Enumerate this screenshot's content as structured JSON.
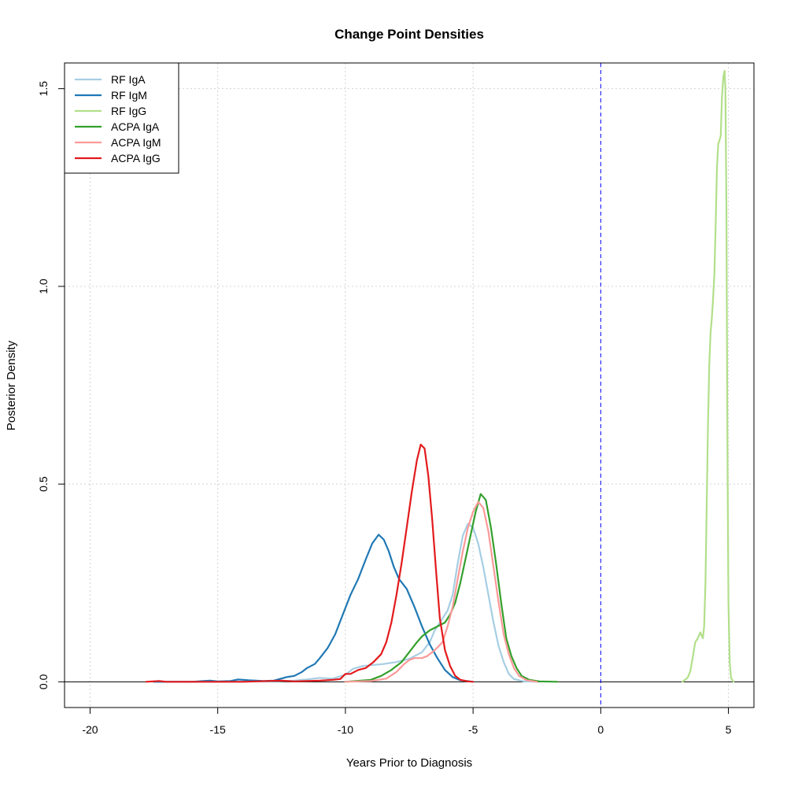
{
  "chart_data": {
    "type": "line",
    "title": "Change Point Densities",
    "xlabel": "Years Prior to Diagnosis",
    "ylabel": "Posterior Density",
    "xlim": [
      -21,
      6
    ],
    "ylim": [
      -0.065,
      1.565
    ],
    "x_ticks": [
      -20,
      -15,
      -10,
      -5,
      0,
      5
    ],
    "y_ticks": [
      0.0,
      0.5,
      1.0,
      1.5
    ],
    "x_tick_labels": [
      "-20",
      "-15",
      "-10",
      "-5",
      "0",
      "5"
    ],
    "y_tick_labels": [
      "0.0",
      "0.5",
      "1.0",
      "1.5"
    ],
    "grid": true,
    "legend_position": "top-left",
    "reference_lines": {
      "vertical_x": 0,
      "vertical_color": "#0000ff",
      "horizontal_y": 0,
      "horizontal_color": "#000000"
    },
    "series": [
      {
        "name": "RF IgA",
        "color": "#a6cee3",
        "points": [
          [
            -17.5,
            0
          ],
          [
            -13,
            0.001
          ],
          [
            -12,
            0.003
          ],
          [
            -11.5,
            0.006
          ],
          [
            -11,
            0.01
          ],
          [
            -10.5,
            0.008
          ],
          [
            -10,
            0.018
          ],
          [
            -9.7,
            0.033
          ],
          [
            -9.3,
            0.04
          ],
          [
            -9,
            0.042
          ],
          [
            -8.5,
            0.045
          ],
          [
            -8,
            0.05
          ],
          [
            -7.5,
            0.058
          ],
          [
            -7,
            0.075
          ],
          [
            -6.7,
            0.1
          ],
          [
            -6.5,
            0.13
          ],
          [
            -6.2,
            0.16
          ],
          [
            -6,
            0.18
          ],
          [
            -5.8,
            0.22
          ],
          [
            -5.6,
            0.3
          ],
          [
            -5.4,
            0.37
          ],
          [
            -5.2,
            0.4
          ],
          [
            -5,
            0.39
          ],
          [
            -4.8,
            0.35
          ],
          [
            -4.6,
            0.29
          ],
          [
            -4.4,
            0.22
          ],
          [
            -4.2,
            0.15
          ],
          [
            -4,
            0.09
          ],
          [
            -3.8,
            0.05
          ],
          [
            -3.6,
            0.02
          ],
          [
            -3.4,
            0.007
          ],
          [
            -3,
            0.001
          ],
          [
            -2.5,
            0
          ]
        ]
      },
      {
        "name": "RF IgM",
        "color": "#1f78b4",
        "points": [
          [
            -17.5,
            0
          ],
          [
            -16,
            0
          ],
          [
            -15.3,
            0.003
          ],
          [
            -15,
            0.001
          ],
          [
            -14.5,
            0.002
          ],
          [
            -14.2,
            0.006
          ],
          [
            -13.8,
            0.004
          ],
          [
            -13.2,
            0.002
          ],
          [
            -12.8,
            0.003
          ],
          [
            -12.3,
            0.012
          ],
          [
            -12,
            0.015
          ],
          [
            -11.7,
            0.025
          ],
          [
            -11.5,
            0.035
          ],
          [
            -11.2,
            0.045
          ],
          [
            -11,
            0.06
          ],
          [
            -10.7,
            0.085
          ],
          [
            -10.4,
            0.12
          ],
          [
            -10.1,
            0.17
          ],
          [
            -9.8,
            0.22
          ],
          [
            -9.5,
            0.26
          ],
          [
            -9.2,
            0.31
          ],
          [
            -8.95,
            0.35
          ],
          [
            -8.7,
            0.372
          ],
          [
            -8.5,
            0.36
          ],
          [
            -8.3,
            0.33
          ],
          [
            -8.1,
            0.29
          ],
          [
            -7.9,
            0.26
          ],
          [
            -7.6,
            0.235
          ],
          [
            -7.3,
            0.19
          ],
          [
            -7,
            0.14
          ],
          [
            -6.7,
            0.095
          ],
          [
            -6.4,
            0.06
          ],
          [
            -6.1,
            0.03
          ],
          [
            -5.8,
            0.012
          ],
          [
            -5.5,
            0.004
          ],
          [
            -5,
            0
          ]
        ]
      },
      {
        "name": "RF IgG",
        "color": "#b2df8a",
        "points": [
          [
            3.2,
            0
          ],
          [
            3.4,
            0.01
          ],
          [
            3.5,
            0.025
          ],
          [
            3.6,
            0.06
          ],
          [
            3.7,
            0.1
          ],
          [
            3.8,
            0.11
          ],
          [
            3.9,
            0.125
          ],
          [
            4.0,
            0.11
          ],
          [
            4.05,
            0.14
          ],
          [
            4.1,
            0.25
          ],
          [
            4.15,
            0.45
          ],
          [
            4.2,
            0.65
          ],
          [
            4.25,
            0.8
          ],
          [
            4.3,
            0.88
          ],
          [
            4.35,
            0.92
          ],
          [
            4.4,
            0.97
          ],
          [
            4.45,
            1.03
          ],
          [
            4.5,
            1.15
          ],
          [
            4.55,
            1.3
          ],
          [
            4.6,
            1.36
          ],
          [
            4.65,
            1.37
          ],
          [
            4.7,
            1.38
          ],
          [
            4.75,
            1.48
          ],
          [
            4.8,
            1.53
          ],
          [
            4.85,
            1.545
          ],
          [
            4.88,
            1.5
          ],
          [
            4.92,
            1.2
          ],
          [
            4.96,
            0.6
          ],
          [
            5.0,
            0.2
          ],
          [
            5.05,
            0.05
          ],
          [
            5.1,
            0.01
          ],
          [
            5.2,
            0
          ]
        ]
      },
      {
        "name": "ACPA IgA",
        "color": "#33a02c",
        "points": [
          [
            -10,
            0
          ],
          [
            -9,
            0.005
          ],
          [
            -8.6,
            0.015
          ],
          [
            -8.2,
            0.03
          ],
          [
            -7.8,
            0.05
          ],
          [
            -7.5,
            0.075
          ],
          [
            -7.2,
            0.1
          ],
          [
            -7,
            0.115
          ],
          [
            -6.7,
            0.13
          ],
          [
            -6.4,
            0.14
          ],
          [
            -6.1,
            0.15
          ],
          [
            -5.9,
            0.17
          ],
          [
            -5.7,
            0.2
          ],
          [
            -5.5,
            0.25
          ],
          [
            -5.3,
            0.31
          ],
          [
            -5.1,
            0.37
          ],
          [
            -4.9,
            0.43
          ],
          [
            -4.7,
            0.475
          ],
          [
            -4.5,
            0.46
          ],
          [
            -4.3,
            0.39
          ],
          [
            -4.1,
            0.3
          ],
          [
            -3.9,
            0.2
          ],
          [
            -3.7,
            0.11
          ],
          [
            -3.5,
            0.065
          ],
          [
            -3.3,
            0.035
          ],
          [
            -3.1,
            0.015
          ],
          [
            -2.8,
            0.005
          ],
          [
            -2.4,
            0.001
          ],
          [
            -1.7,
            0
          ]
        ]
      },
      {
        "name": "ACPA IgM",
        "color": "#fb9a99",
        "points": [
          [
            -10,
            0
          ],
          [
            -9,
            0.002
          ],
          [
            -8.4,
            0.008
          ],
          [
            -8,
            0.025
          ],
          [
            -7.7,
            0.045
          ],
          [
            -7.5,
            0.055
          ],
          [
            -7.3,
            0.06
          ],
          [
            -7,
            0.06
          ],
          [
            -6.8,
            0.065
          ],
          [
            -6.5,
            0.08
          ],
          [
            -6.2,
            0.1
          ],
          [
            -6,
            0.14
          ],
          [
            -5.8,
            0.19
          ],
          [
            -5.6,
            0.26
          ],
          [
            -5.4,
            0.33
          ],
          [
            -5.2,
            0.39
          ],
          [
            -5,
            0.43
          ],
          [
            -4.8,
            0.455
          ],
          [
            -4.6,
            0.44
          ],
          [
            -4.4,
            0.38
          ],
          [
            -4.2,
            0.29
          ],
          [
            -4,
            0.2
          ],
          [
            -3.8,
            0.12
          ],
          [
            -3.6,
            0.07
          ],
          [
            -3.4,
            0.035
          ],
          [
            -3.2,
            0.015
          ],
          [
            -2.9,
            0.004
          ],
          [
            -2.5,
            0
          ]
        ]
      },
      {
        "name": "ACPA IgG",
        "color": "#e31a1c",
        "points": [
          [
            -17.8,
            0
          ],
          [
            -17.3,
            0.002
          ],
          [
            -17,
            0
          ],
          [
            -14,
            0
          ],
          [
            -13,
            0.002
          ],
          [
            -12.5,
            0.003
          ],
          [
            -12,
            0.001
          ],
          [
            -11,
            0.003
          ],
          [
            -10.5,
            0.005
          ],
          [
            -10.2,
            0.007
          ],
          [
            -10,
            0.02
          ],
          [
            -9.8,
            0.02
          ],
          [
            -9.5,
            0.03
          ],
          [
            -9.2,
            0.035
          ],
          [
            -8.9,
            0.05
          ],
          [
            -8.6,
            0.07
          ],
          [
            -8.4,
            0.1
          ],
          [
            -8.2,
            0.15
          ],
          [
            -8,
            0.22
          ],
          [
            -7.8,
            0.3
          ],
          [
            -7.6,
            0.39
          ],
          [
            -7.4,
            0.48
          ],
          [
            -7.2,
            0.56
          ],
          [
            -7.05,
            0.6
          ],
          [
            -6.9,
            0.59
          ],
          [
            -6.75,
            0.52
          ],
          [
            -6.6,
            0.41
          ],
          [
            -6.45,
            0.28
          ],
          [
            -6.3,
            0.16
          ],
          [
            -6.1,
            0.08
          ],
          [
            -5.9,
            0.04
          ],
          [
            -5.7,
            0.015
          ],
          [
            -5.5,
            0.005
          ],
          [
            -5.2,
            0.001
          ],
          [
            -5,
            0
          ]
        ]
      }
    ]
  }
}
